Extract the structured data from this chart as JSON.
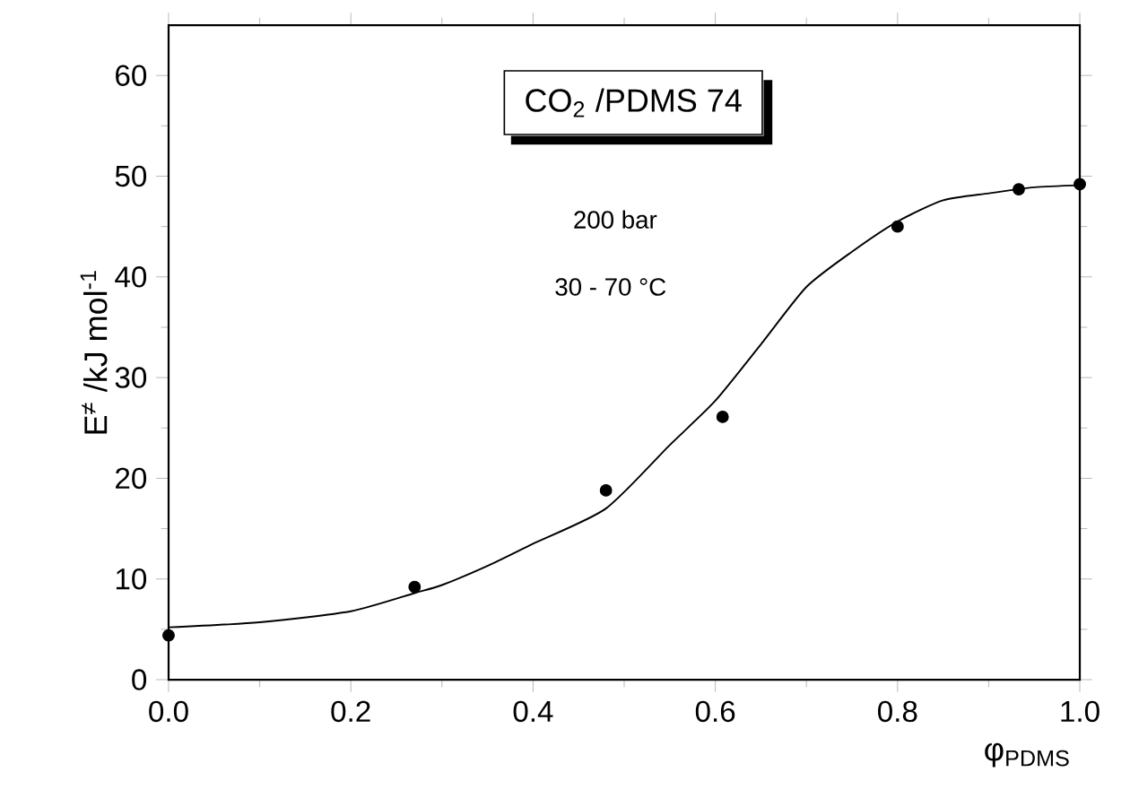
{
  "chart_data": {
    "type": "scatter",
    "title": "CO$_{2}$ /PDMS 74",
    "xlabel": "φ$_{PDMS}$",
    "ylabel": "E$^{≠}$ /kJ mol$^{-1}$",
    "annotations": [
      "200 bar",
      "30 - 70 °C"
    ],
    "xlim": [
      0,
      1
    ],
    "ylim": [
      0,
      65
    ],
    "xticks": [
      {
        "value": 0,
        "label": "0.0"
      },
      0.2,
      0.4,
      0.6,
      0.8,
      {
        "value": 1,
        "label": "1.0"
      }
    ],
    "yticks": [
      0,
      10,
      20,
      30,
      40,
      50,
      60
    ],
    "grid": false,
    "series": [
      {
        "marker": "circle",
        "color": "#000000",
        "x": [
          0.0,
          0.27,
          0.48,
          0.608,
          0.8,
          0.933,
          1.0
        ],
        "values": [
          4.4,
          9.2,
          18.8,
          26.1,
          45.0,
          48.7,
          49.2
        ]
      },
      {
        "type": "line",
        "marker": "none",
        "line_style": "solid",
        "color": "#000000",
        "x": [
          0.0,
          0.1,
          0.2,
          0.27,
          0.3,
          0.35,
          0.4,
          0.48,
          0.55,
          0.6,
          0.65,
          0.7,
          0.75,
          0.8,
          0.85,
          0.9,
          0.95,
          1.0
        ],
        "values": [
          5.2,
          5.7,
          6.8,
          8.6,
          9.4,
          11.3,
          13.5,
          17.0,
          23.3,
          27.7,
          33.3,
          39.0,
          42.5,
          45.5,
          47.6,
          48.3,
          48.9,
          49.1
        ]
      }
    ]
  }
}
